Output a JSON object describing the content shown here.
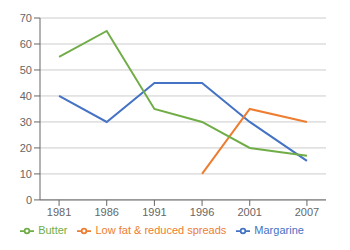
{
  "chart_data": {
    "type": "line",
    "x": [
      1981,
      1986,
      1991,
      1996,
      2001,
      2007
    ],
    "series": [
      {
        "name": "Margarine",
        "color": "#4472c4",
        "values": [
          40,
          30,
          45,
          45,
          30,
          15
        ]
      },
      {
        "name": "Low fat & reduced spreads",
        "color": "#ed7d31",
        "values": [
          null,
          null,
          null,
          10,
          35,
          30
        ]
      },
      {
        "name": "Butter",
        "color": "#70ad47",
        "values": [
          55,
          65,
          35,
          30,
          20,
          17
        ]
      }
    ],
    "xlim": [
      1979,
      2009
    ],
    "xticks": [
      1981,
      1986,
      1991,
      1996,
      2001,
      2007
    ],
    "ylim": [
      0,
      70
    ],
    "yticks": [
      0,
      10,
      20,
      30,
      40,
      50,
      60,
      70
    ],
    "grid": true,
    "legend": "bottom"
  }
}
